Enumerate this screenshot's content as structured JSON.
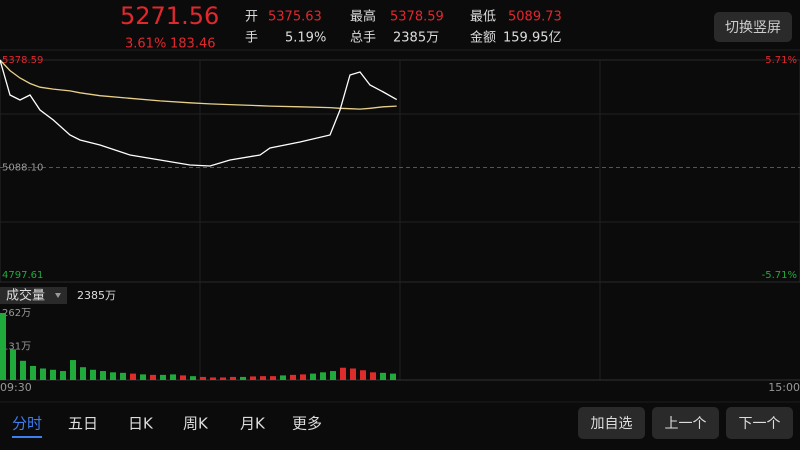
{
  "header": {
    "price": "5271.56",
    "change_pct": "3.61%",
    "change": "183.46",
    "fields": [
      {
        "label": "开",
        "value": "5375.63",
        "color": "#e0282e"
      },
      {
        "label": "最高",
        "value": "5378.59",
        "color": "#e0282e"
      },
      {
        "label": "最低",
        "value": "5089.73",
        "color": "#e0282e"
      },
      {
        "label": "手",
        "value": "5.19%",
        "color": "#dddddd"
      },
      {
        "label": "总手",
        "value": "2385万",
        "color": "#dddddd"
      },
      {
        "label": "金额",
        "value": "159.95亿",
        "color": "#dddddd"
      }
    ],
    "button": "切换竖屏"
  },
  "chart_data": [
    {
      "type": "line",
      "x": [
        0,
        3,
        6,
        9,
        12,
        16,
        21,
        24,
        30,
        39,
        48,
        57,
        63,
        69,
        78,
        81,
        90,
        99,
        102,
        105,
        108,
        111,
        115,
        119
      ],
      "xlim": [
        0,
        240
      ],
      "xticks": [
        {
          "value": 0,
          "label": "09:30"
        },
        {
          "value": 240,
          "label": "15:00"
        }
      ],
      "ylim": [
        4797.61,
        5378.59
      ],
      "yticks": [
        {
          "value": 5378.59,
          "label": "5378.59"
        },
        {
          "value": 5088.1,
          "label": "5088.10"
        },
        {
          "value": 4797.61,
          "label": "4797.61"
        }
      ],
      "y2lim": [
        -5.71,
        5.71
      ],
      "y2ticks": [
        {
          "value": 5.71,
          "label": "5.71%"
        },
        {
          "value": -5.71,
          "label": "-5.71%"
        }
      ],
      "series": [
        {
          "name": "price",
          "color": "#ffffff",
          "values": [
            5378.59,
            5284.0,
            5270.5,
            5284.0,
            5243.5,
            5216.5,
            5175.9,
            5162.4,
            5148.9,
            5121.9,
            5108.4,
            5094.9,
            5092.2,
            5108.4,
            5121.9,
            5140.8,
            5157.0,
            5175.9,
            5243.5,
            5338.1,
            5346.2,
            5311.1,
            5292.1,
            5271.56
          ]
        },
        {
          "name": "average",
          "color": "#e8d08a",
          "values": [
            5378.59,
            5350,
            5330,
            5315,
            5305,
            5300,
            5295,
            5290,
            5282,
            5275,
            5268,
            5263,
            5260,
            5258,
            5255,
            5254,
            5252,
            5250,
            5248,
            5247,
            5246,
            5248,
            5252,
            5254
          ]
        }
      ]
    },
    {
      "type": "bar",
      "x": [
        0,
        3,
        6,
        9,
        12,
        15,
        18,
        21,
        24,
        27,
        30,
        33,
        36,
        39,
        42,
        45,
        48,
        51,
        54,
        57,
        60,
        63,
        66,
        69,
        72,
        75,
        78,
        81,
        84,
        87,
        90,
        93,
        96,
        99,
        102,
        105,
        108,
        111,
        114,
        117
      ],
      "xlim": [
        0,
        240
      ],
      "ylim": [
        0,
        262
      ],
      "yticks": [
        {
          "value": 262,
          "label": "262万"
        },
        {
          "value": 131,
          "label": "131万"
        }
      ],
      "values": [
        262,
        120,
        75,
        55,
        45,
        40,
        35,
        78,
        50,
        40,
        35,
        30,
        28,
        25,
        22,
        20,
        20,
        22,
        18,
        15,
        12,
        10,
        10,
        12,
        12,
        14,
        15,
        15,
        18,
        20,
        22,
        25,
        30,
        35,
        48,
        45,
        38,
        30,
        28,
        25
      ],
      "colors": [
        "#1faa3b",
        "#1faa3b",
        "#1faa3b",
        "#1faa3b",
        "#1faa3b",
        "#1faa3b",
        "#1faa3b",
        "#1faa3b",
        "#1faa3b",
        "#1faa3b",
        "#1faa3b",
        "#1faa3b",
        "#1faa3b",
        "#e02b2b",
        "#1faa3b",
        "#e02b2b",
        "#1faa3b",
        "#1faa3b",
        "#e02b2b",
        "#1faa3b",
        "#e02b2b",
        "#e02b2b",
        "#e02b2b",
        "#e02b2b",
        "#1faa3b",
        "#e02b2b",
        "#e02b2b",
        "#e02b2b",
        "#1faa3b",
        "#e02b2b",
        "#e02b2b",
        "#1faa3b",
        "#1faa3b",
        "#1faa3b",
        "#e02b2b",
        "#e02b2b",
        "#e02b2b",
        "#e02b2b",
        "#1faa3b",
        "#1faa3b"
      ]
    }
  ],
  "volume_panel": {
    "label": "成交量",
    "total": "2385万"
  },
  "tabs": [
    "分时",
    "五日",
    "日K",
    "周K",
    "月K",
    "更多"
  ],
  "buttons": [
    "加自选",
    "上一个",
    "下一个"
  ]
}
